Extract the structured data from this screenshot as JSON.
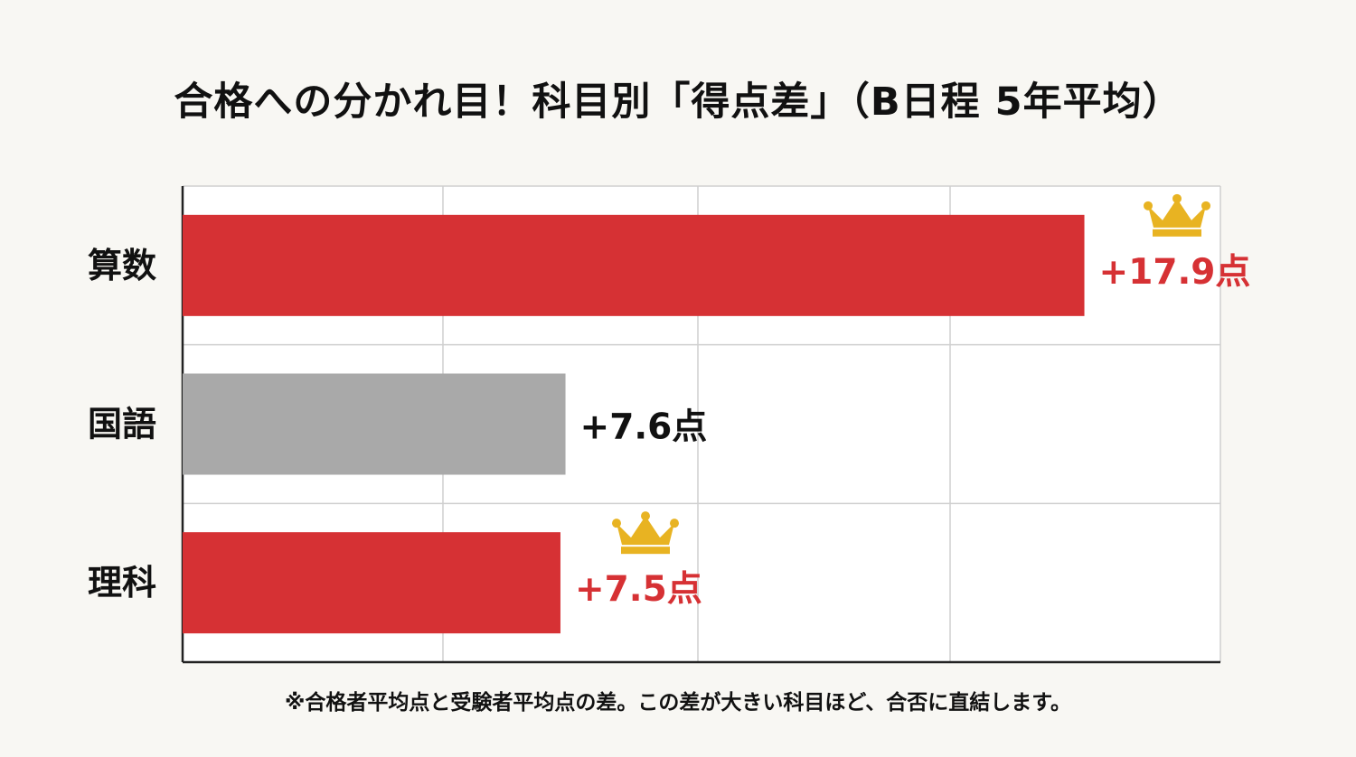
{
  "title": "合格への分かれ目！科目別「得点差」（B日程 5年平均）",
  "footnote": "※合格者平均点と受験者平均点の差。この差が大きい科目ほど、合否に直結します。",
  "colors": {
    "highlight": "#d63134",
    "neutral": "#a9a9a9",
    "crown": "#e8b322",
    "dark_text": "#111111"
  },
  "chart_data": {
    "type": "bar",
    "orientation": "horizontal",
    "title": "合格への分かれ目！科目別「得点差」（B日程 5年平均）",
    "categories": [
      "算数",
      "国語",
      "理科"
    ],
    "values": [
      17.9,
      7.6,
      7.5
    ],
    "value_labels": [
      "+17.9点",
      "+7.6点",
      "+7.5点"
    ],
    "highlighted": [
      true,
      false,
      true
    ],
    "crown_icons": [
      true,
      false,
      true
    ],
    "xlim": [
      0,
      20.6
    ],
    "grid": true,
    "legend": "none"
  }
}
